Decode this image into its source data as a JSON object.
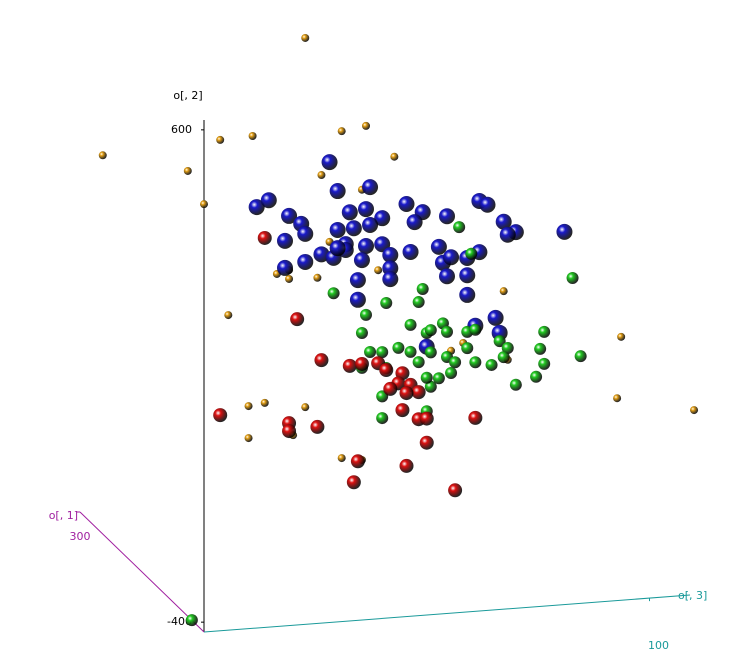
{
  "chart_data": {
    "type": "scatter3d",
    "xlabel": "o[, 3]",
    "ylabel": "o[, 2]",
    "zlabel": "o[, 1]",
    "xlim": [
      -10,
      110
    ],
    "ylim": [
      -420,
      620
    ],
    "zlim": [
      0,
      300
    ],
    "xticks": [
      100
    ],
    "yticks": [
      600,
      -400
    ],
    "zticks": [
      300
    ],
    "axis_colors": {
      "x": "#1a9a9a",
      "y": "#000000",
      "z": "#a020a0"
    },
    "series": [
      {
        "color": "#e8a317",
        "marker_size": 4,
        "x": [
          15,
          -35,
          -14,
          -6,
          2,
          24,
          30,
          37,
          -10,
          19,
          29,
          8,
          11,
          18,
          11,
          -4,
          33,
          64,
          93,
          92,
          111,
          1,
          5,
          1,
          12,
          15,
          24,
          29,
          50,
          51,
          54,
          65,
          21
        ],
        "y": [
          771,
          564,
          519,
          577,
          580,
          576,
          583,
          516,
          449,
          490,
          454,
          296,
          284,
          282,
          302,
          220,
          288,
          226,
          115,
          -9,
          -45,
          32,
          36,
          -33,
          -34,
          21,
          -88,
          -95,
          156,
          113,
          127,
          86,
          353
        ]
      },
      {
        "color": "#1a1acc",
        "marker_size": 8,
        "x": [
          21,
          31,
          23,
          26,
          3,
          6,
          11,
          14,
          15,
          10,
          23,
          25,
          27,
          30,
          34,
          31,
          40,
          44,
          50,
          42,
          58,
          60,
          64,
          67,
          65,
          79,
          30,
          34,
          36,
          41,
          49,
          51,
          55,
          58,
          48,
          19,
          22,
          15,
          25,
          36,
          36,
          28,
          10,
          50,
          55,
          55,
          28,
          62,
          63,
          57,
          45,
          23,
          29
        ],
        "y": [
          515,
          458,
          455,
          410,
          435,
          447,
          412,
          394,
          373,
          362,
          376,
          346,
          377,
          414,
          393,
          381,
          418,
          399,
          387,
          380,
          413,
          404,
          367,
          344,
          340,
          337,
          339,
          340,
          317,
          320,
          293,
          303,
          299,
          309,
          326,
          329,
          320,
          316,
          334,
          290,
          268,
          271,
          307,
          265,
          264,
          224,
          231,
          173,
          142,
          160,
          125,
          339,
          311
        ]
      },
      {
        "color": "#22cc22",
        "marker_size": 6,
        "x": [
          53,
          56,
          81,
          22,
          35,
          43,
          44,
          30,
          29,
          41,
          45,
          46,
          49,
          50,
          55,
          57,
          63,
          65,
          74,
          73,
          83,
          74,
          67,
          72,
          31,
          34,
          38,
          41,
          46,
          50,
          52,
          57,
          61,
          64,
          51,
          48,
          46,
          29,
          43,
          35,
          45,
          34,
          34,
          45,
          55,
          -13
        ],
        "y": [
          363,
          307,
          242,
          248,
          220,
          217,
          243,
          199,
          163,
          172,
          153,
          158,
          170,
          152,
          149,
          152,
          125,
          110,
          137,
          103,
          82,
          72,
          34,
          47,
          123,
          121,
          127,
          117,
          113,
          101,
          89,
          86,
          78,
          92,
          68,
          59,
          43,
          92,
          95,
          88,
          62,
          31,
          -13,
          -6,
          116,
          -394
        ]
      },
      {
        "color": "#dd1111",
        "marker_size": 7,
        "x": [
          5,
          13,
          19,
          26,
          29,
          33,
          35,
          39,
          38,
          41,
          43,
          40,
          36,
          -6,
          11,
          11,
          18,
          39,
          43,
          45,
          57,
          45,
          28,
          40,
          27,
          52
        ],
        "y": [
          371,
          201,
          114,
          98,
          100,
          99,
          84,
          75,
          55,
          50,
          34,
          34,
          45,
          18,
          -9,
          -25,
          -21,
          0,
          -21,
          -21,
          -27,
          -70,
          -97,
          -114,
          -139,
          -171
        ]
      }
    ]
  }
}
